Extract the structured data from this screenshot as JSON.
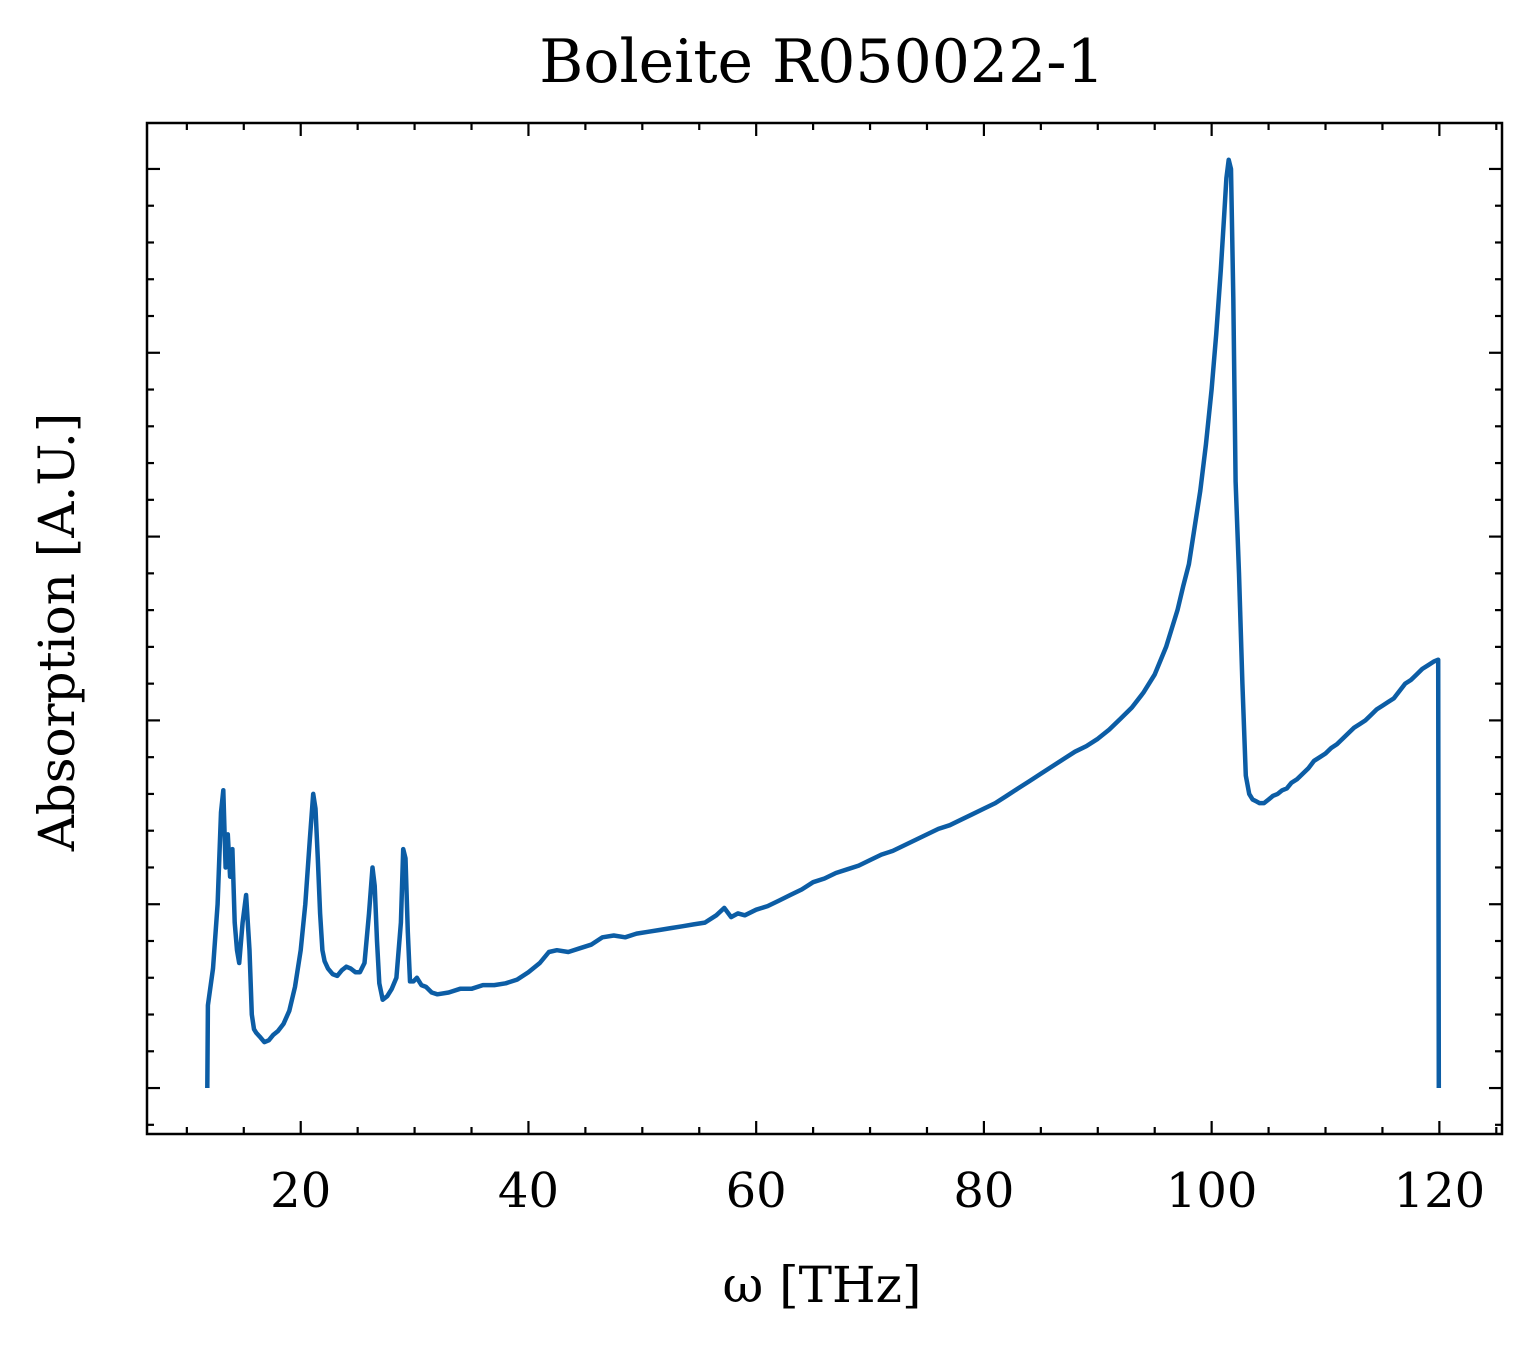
{
  "chart_data": {
    "type": "line",
    "title": "Boleite R050022-1",
    "xlabel": "ω [THz]",
    "ylabel": "Absorption [A.U.]",
    "xlim": [
      6.5,
      125.5
    ],
    "ylim": [
      -0.025,
      0.525
    ],
    "x_ticks": [
      20,
      40,
      60,
      80,
      100,
      120
    ],
    "x_tick_labels": [
      "20",
      "40",
      "60",
      "80",
      "100",
      "120"
    ],
    "y_ticks": [
      0.0,
      0.1,
      0.2,
      0.3,
      0.4,
      0.5
    ],
    "y_tick_labels_visible": false,
    "grid": false,
    "legend": "none",
    "series": [
      {
        "color": "#0C5DA5",
        "x": [
          11.8,
          11.85,
          12.3,
          12.7,
          13.0,
          13.2,
          13.4,
          13.6,
          13.8,
          14.0,
          14.2,
          14.4,
          14.6,
          14.9,
          15.2,
          15.5,
          15.7,
          15.9,
          16.1,
          16.4,
          16.8,
          17.2,
          17.6,
          18.0,
          18.5,
          19.0,
          19.5,
          20.0,
          20.4,
          20.8,
          21.1,
          21.3,
          21.5,
          21.7,
          21.9,
          22.1,
          22.4,
          22.8,
          23.2,
          23.6,
          24.0,
          24.4,
          24.8,
          25.2,
          25.6,
          26.0,
          26.3,
          26.5,
          26.7,
          26.9,
          27.2,
          27.6,
          28.0,
          28.4,
          28.8,
          29.0,
          29.2,
          29.4,
          29.6,
          29.9,
          30.2,
          30.6,
          31.0,
          31.5,
          32.0,
          33.0,
          34.0,
          35.0,
          36.0,
          37.0,
          38.0,
          39.0,
          40.0,
          41.0,
          41.8,
          42.5,
          43.5,
          44.5,
          45.5,
          46.5,
          47.5,
          48.5,
          49.5,
          50.5,
          51.5,
          52.5,
          53.5,
          54.5,
          55.5,
          56.5,
          57.2,
          57.8,
          58.4,
          59.0,
          60.0,
          61.0,
          62.0,
          63.0,
          64.0,
          65.0,
          66.0,
          67.0,
          68.0,
          69.0,
          70.0,
          71.0,
          72.0,
          73.0,
          74.0,
          75.0,
          76.0,
          77.0,
          78.0,
          79.0,
          80.0,
          81.0,
          82.0,
          83.0,
          84.0,
          85.0,
          86.0,
          87.0,
          88.0,
          89.0,
          90.0,
          91.0,
          92.0,
          93.0,
          94.0,
          95.0,
          96.0,
          96.5,
          97.0,
          97.5,
          98.0,
          98.5,
          99.0,
          99.5,
          100.0,
          100.4,
          100.8,
          101.1,
          101.3,
          101.5,
          101.7,
          101.9,
          102.1,
          102.4,
          102.7,
          103.0,
          103.3,
          103.6,
          103.9,
          104.2,
          104.6,
          105.0,
          105.4,
          105.8,
          106.2,
          106.6,
          107.0,
          107.5,
          108.0,
          108.5,
          109.0,
          109.5,
          110.0,
          110.5,
          111.0,
          111.5,
          112.0,
          112.5,
          113.0,
          113.5,
          114.0,
          114.5,
          115.0,
          115.5,
          116.0,
          116.5,
          117.0,
          117.5,
          118.0,
          118.5,
          119.0,
          119.5,
          119.9,
          119.95
        ],
        "y": [
          0.0,
          0.045,
          0.065,
          0.1,
          0.15,
          0.162,
          0.12,
          0.138,
          0.115,
          0.13,
          0.09,
          0.075,
          0.068,
          0.09,
          0.105,
          0.075,
          0.04,
          0.032,
          0.03,
          0.028,
          0.025,
          0.026,
          0.029,
          0.031,
          0.035,
          0.042,
          0.055,
          0.075,
          0.1,
          0.135,
          0.16,
          0.152,
          0.125,
          0.095,
          0.075,
          0.069,
          0.065,
          0.062,
          0.061,
          0.064,
          0.066,
          0.065,
          0.063,
          0.063,
          0.068,
          0.095,
          0.12,
          0.11,
          0.08,
          0.057,
          0.048,
          0.05,
          0.054,
          0.06,
          0.09,
          0.13,
          0.125,
          0.085,
          0.058,
          0.058,
          0.06,
          0.056,
          0.055,
          0.052,
          0.051,
          0.052,
          0.054,
          0.054,
          0.056,
          0.056,
          0.057,
          0.059,
          0.063,
          0.068,
          0.074,
          0.075,
          0.074,
          0.076,
          0.078,
          0.082,
          0.083,
          0.082,
          0.084,
          0.085,
          0.086,
          0.087,
          0.088,
          0.089,
          0.09,
          0.094,
          0.098,
          0.093,
          0.095,
          0.094,
          0.097,
          0.099,
          0.102,
          0.105,
          0.108,
          0.112,
          0.114,
          0.117,
          0.119,
          0.121,
          0.124,
          0.127,
          0.129,
          0.132,
          0.135,
          0.138,
          0.141,
          0.143,
          0.146,
          0.149,
          0.152,
          0.155,
          0.159,
          0.163,
          0.167,
          0.171,
          0.175,
          0.179,
          0.183,
          0.186,
          0.19,
          0.195,
          0.201,
          0.207,
          0.215,
          0.225,
          0.24,
          0.25,
          0.26,
          0.273,
          0.285,
          0.305,
          0.325,
          0.35,
          0.38,
          0.41,
          0.445,
          0.475,
          0.495,
          0.505,
          0.5,
          0.43,
          0.33,
          0.28,
          0.22,
          0.17,
          0.16,
          0.157,
          0.156,
          0.155,
          0.155,
          0.157,
          0.159,
          0.16,
          0.162,
          0.163,
          0.166,
          0.168,
          0.171,
          0.174,
          0.178,
          0.18,
          0.182,
          0.185,
          0.187,
          0.19,
          0.193,
          0.196,
          0.198,
          0.2,
          0.203,
          0.206,
          0.208,
          0.21,
          0.212,
          0.216,
          0.22,
          0.222,
          0.225,
          0.228,
          0.23,
          0.232,
          0.233,
          0.0
        ]
      }
    ]
  }
}
